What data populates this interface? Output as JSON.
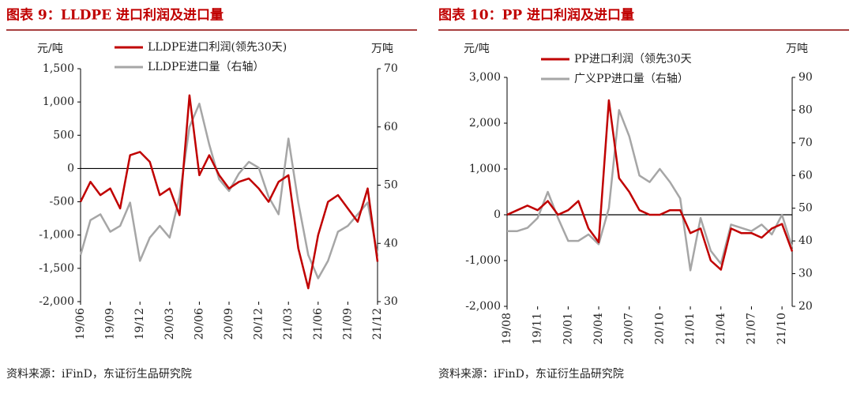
{
  "chart_data": [
    {
      "type": "line",
      "title": "图表 9：LLDPE 进口利润及进口量",
      "ylabel": "元/吨",
      "y2label": "万吨",
      "source": "资料来源：iFinD，东证衍生品研究院",
      "categories": [
        "19/06",
        null,
        null,
        "19/09",
        null,
        null,
        "19/12",
        null,
        null,
        "20/03",
        null,
        null,
        "20/06",
        null,
        null,
        "20/09",
        null,
        null,
        "20/12",
        null,
        null,
        "21/03",
        null,
        null,
        "21/06",
        null,
        null,
        "21/09",
        null,
        null,
        "21/12"
      ],
      "series": [
        {
          "name": "LLDPE进口利润(领先30天)",
          "color": "#c00000",
          "values": [
            -500,
            -200,
            -400,
            -300,
            -600,
            200,
            250,
            100,
            -400,
            -300,
            -700,
            1100,
            -100,
            200,
            -100,
            -300,
            -200,
            -150,
            -300,
            -500,
            -200,
            -100,
            -1200,
            -1800,
            -1000,
            -500,
            -400,
            -600,
            -800,
            -300,
            -1400
          ]
        },
        {
          "name": "LLDPE进口量（右轴）",
          "color": "#a6a6a6",
          "axis": "y2",
          "values": [
            38,
            44,
            45,
            42,
            43,
            47,
            37,
            41,
            43,
            41,
            48,
            60,
            64,
            57,
            51,
            49,
            52,
            54,
            53,
            48,
            45,
            58,
            47,
            38,
            34,
            37,
            42,
            43,
            45,
            47,
            38
          ]
        }
      ],
      "ylim": [
        -2000,
        1500
      ],
      "yticks": [
        {
          "value": 1500,
          "label": "1,500"
        },
        {
          "value": 1000,
          "label": "1,000"
        },
        500,
        0,
        -500,
        {
          "value": -1000,
          "label": "-1,000"
        },
        {
          "value": -1500,
          "label": "-1,500"
        },
        {
          "value": -2000,
          "label": "-2,000"
        }
      ],
      "y2lim": [
        30,
        70
      ],
      "y2ticks": [
        70,
        60,
        50,
        40,
        30
      ]
    },
    {
      "type": "line",
      "title": "图表 10：PP 进口利润及进口量",
      "ylabel": "元/吨",
      "y2label": "万吨",
      "source": "资料来源：iFinD，东证衍生品研究院",
      "categories": [
        "19/08",
        null,
        null,
        "19/11",
        null,
        null,
        "20/01",
        null,
        null,
        "20/04",
        null,
        null,
        "20/07",
        null,
        null,
        "20/10",
        null,
        null,
        "21/01",
        null,
        null,
        "21/04",
        null,
        null,
        "21/07",
        null,
        null,
        "21/10",
        null
      ],
      "series": [
        {
          "name": "PP进口利润（领先30天",
          "color": "#c00000",
          "values": [
            0,
            100,
            200,
            100,
            300,
            0,
            100,
            300,
            -300,
            -600,
            2500,
            800,
            500,
            100,
            0,
            0,
            100,
            100,
            -400,
            -300,
            -1000,
            -1200,
            -300,
            -400,
            -400,
            -500,
            -300,
            -200,
            -800
          ]
        },
        {
          "name": "广义PP进口量（右轴）",
          "color": "#a6a6a6",
          "axis": "y2",
          "values": [
            43,
            43,
            44,
            47,
            55,
            47,
            40,
            40,
            42,
            39,
            50,
            80,
            72,
            60,
            58,
            62,
            58,
            53,
            31,
            47,
            37,
            33,
            45,
            44,
            43,
            45,
            42,
            48,
            38
          ]
        }
      ],
      "ylim": [
        -2000,
        3000
      ],
      "yticks": [
        {
          "value": 3000,
          "label": "3,000"
        },
        {
          "value": 2000,
          "label": "2,000"
        },
        {
          "value": 1000,
          "label": "1,000"
        },
        0,
        {
          "value": -1000,
          "label": "-1,000"
        },
        {
          "value": -2000,
          "label": "-2,000"
        }
      ],
      "y2lim": [
        20,
        90
      ],
      "y2ticks": [
        90,
        80,
        70,
        60,
        50,
        40,
        30,
        20
      ]
    }
  ]
}
